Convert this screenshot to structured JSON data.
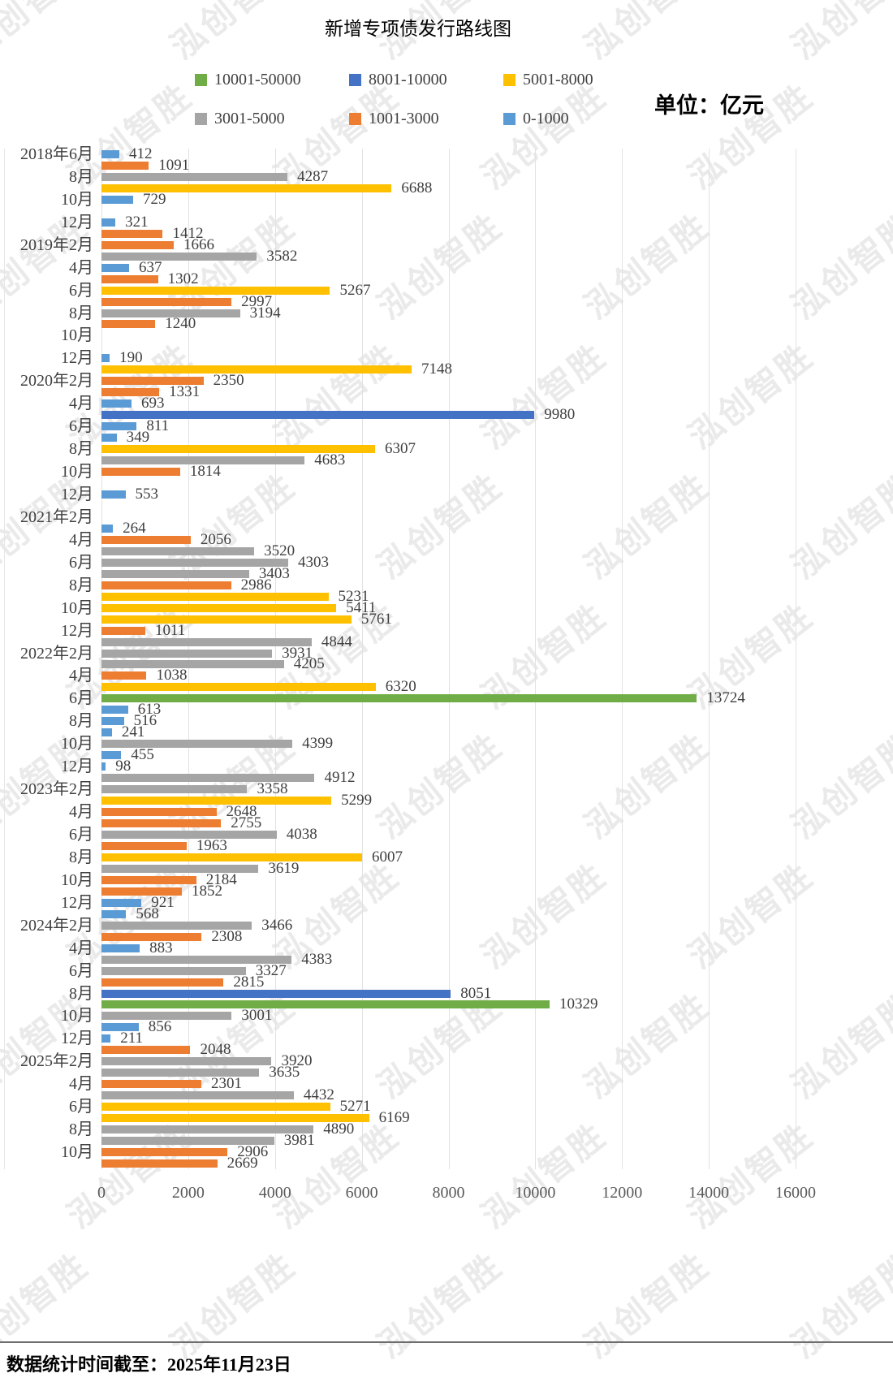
{
  "title": "新增专项债发行路线图",
  "unit_label": "单位：亿元",
  "watermark_text": "泓创智胜",
  "footer": {
    "note": "数据统计时间截至：2025年11月23日"
  },
  "legend": [
    {
      "label": "10001-50000",
      "color": "#70AD47",
      "min": 10001,
      "max": 50000
    },
    {
      "label": "8001-10000",
      "color": "#4472C4",
      "min": 8001,
      "max": 10000
    },
    {
      "label": "5001-8000",
      "color": "#FFC000",
      "min": 5001,
      "max": 8000
    },
    {
      "label": "3001-5000",
      "color": "#A5A5A5",
      "min": 3001,
      "max": 5000
    },
    {
      "label": "1001-3000",
      "color": "#ED7D31",
      "min": 1001,
      "max": 3000
    },
    {
      "label": "0-1000",
      "color": "#5B9BD5",
      "min": 0,
      "max": 1000
    }
  ],
  "chart_data": {
    "type": "bar",
    "orientation": "horizontal",
    "title": "新增专项债发行路线图",
    "unit": "亿元",
    "legend_position": "top",
    "grid": true,
    "xlim": [
      0,
      16000
    ],
    "x_ticks": [
      0,
      2000,
      4000,
      6000,
      8000,
      10000,
      12000,
      14000,
      16000
    ],
    "rows": [
      {
        "month": "2018-06",
        "tick": "2018年6月",
        "value": 412
      },
      {
        "month": "2018-07",
        "tick": "",
        "value": 1091
      },
      {
        "month": "2018-08",
        "tick": "8月",
        "value": 4287
      },
      {
        "month": "2018-09",
        "tick": "",
        "value": 6688
      },
      {
        "month": "2018-10",
        "tick": "10月",
        "value": 729
      },
      {
        "month": "2018-11",
        "tick": "",
        "value": null
      },
      {
        "month": "2018-12",
        "tick": "12月",
        "value": 321
      },
      {
        "month": "2019-01",
        "tick": "",
        "value": 1412
      },
      {
        "month": "2019-02",
        "tick": "2019年2月",
        "value": 1666
      },
      {
        "month": "2019-03",
        "tick": "",
        "value": 3582
      },
      {
        "month": "2019-04",
        "tick": "4月",
        "value": 637
      },
      {
        "month": "2019-05",
        "tick": "",
        "value": 1302
      },
      {
        "month": "2019-06",
        "tick": "6月",
        "value": 5267
      },
      {
        "month": "2019-07",
        "tick": "",
        "value": 2997
      },
      {
        "month": "2019-08",
        "tick": "8月",
        "value": 3194
      },
      {
        "month": "2019-09",
        "tick": "",
        "value": 1240
      },
      {
        "month": "2019-10",
        "tick": "10月",
        "value": null
      },
      {
        "month": "2019-11",
        "tick": "",
        "value": null
      },
      {
        "month": "2019-12",
        "tick": "12月",
        "value": 190
      },
      {
        "month": "2020-01",
        "tick": "",
        "value": 7148
      },
      {
        "month": "2020-02",
        "tick": "2020年2月",
        "value": 2350
      },
      {
        "month": "2020-03",
        "tick": "",
        "value": 1331
      },
      {
        "month": "2020-04",
        "tick": "4月",
        "value": 693
      },
      {
        "month": "2020-05",
        "tick": "",
        "value": 9980
      },
      {
        "month": "2020-06",
        "tick": "6月",
        "value": 811
      },
      {
        "month": "2020-07",
        "tick": "",
        "value": 349
      },
      {
        "month": "2020-08",
        "tick": "8月",
        "value": 6307
      },
      {
        "month": "2020-09",
        "tick": "",
        "value": 4683
      },
      {
        "month": "2020-10",
        "tick": "10月",
        "value": 1814
      },
      {
        "month": "2020-11",
        "tick": "",
        "value": null
      },
      {
        "month": "2020-12",
        "tick": "12月",
        "value": 553
      },
      {
        "month": "2021-01",
        "tick": "",
        "value": null
      },
      {
        "month": "2021-02",
        "tick": "2021年2月",
        "value": null
      },
      {
        "month": "2021-03",
        "tick": "",
        "value": 264
      },
      {
        "month": "2021-04",
        "tick": "4月",
        "value": 2056
      },
      {
        "month": "2021-05",
        "tick": "",
        "value": 3520
      },
      {
        "month": "2021-06",
        "tick": "6月",
        "value": 4303
      },
      {
        "month": "2021-07",
        "tick": "",
        "value": 3403
      },
      {
        "month": "2021-08",
        "tick": "8月",
        "value": 2986
      },
      {
        "month": "2021-09",
        "tick": "",
        "value": 5231
      },
      {
        "month": "2021-10",
        "tick": "10月",
        "value": 5411
      },
      {
        "month": "2021-11",
        "tick": "",
        "value": 5761
      },
      {
        "month": "2021-12",
        "tick": "12月",
        "value": 1011
      },
      {
        "month": "2022-01",
        "tick": "",
        "value": 4844
      },
      {
        "month": "2022-02",
        "tick": "2022年2月",
        "value": 3931
      },
      {
        "month": "2022-03",
        "tick": "",
        "value": 4205
      },
      {
        "month": "2022-04",
        "tick": "4月",
        "value": 1038
      },
      {
        "month": "2022-05",
        "tick": "",
        "value": 6320
      },
      {
        "month": "2022-06",
        "tick": "6月",
        "value": 13724
      },
      {
        "month": "2022-07",
        "tick": "",
        "value": 613
      },
      {
        "month": "2022-08",
        "tick": "8月",
        "value": 516
      },
      {
        "month": "2022-09",
        "tick": "",
        "value": 241
      },
      {
        "month": "2022-10",
        "tick": "10月",
        "value": 4399
      },
      {
        "month": "2022-11",
        "tick": "",
        "value": 455
      },
      {
        "month": "2022-12",
        "tick": "12月",
        "value": 98
      },
      {
        "month": "2023-01",
        "tick": "",
        "value": 4912
      },
      {
        "month": "2023-02",
        "tick": "2023年2月",
        "value": 3358
      },
      {
        "month": "2023-03",
        "tick": "",
        "value": 5299
      },
      {
        "month": "2023-04",
        "tick": "4月",
        "value": 2648
      },
      {
        "month": "2023-05",
        "tick": "",
        "value": 2755
      },
      {
        "month": "2023-06",
        "tick": "6月",
        "value": 4038
      },
      {
        "month": "2023-07",
        "tick": "",
        "value": 1963
      },
      {
        "month": "2023-08",
        "tick": "8月",
        "value": 6007
      },
      {
        "month": "2023-09",
        "tick": "",
        "value": 3619
      },
      {
        "month": "2023-10",
        "tick": "10月",
        "value": 2184
      },
      {
        "month": "2023-11",
        "tick": "",
        "value": 1852
      },
      {
        "month": "2023-12",
        "tick": "12月",
        "value": 921
      },
      {
        "month": "2024-01",
        "tick": "",
        "value": 568
      },
      {
        "month": "2024-02",
        "tick": "2024年2月",
        "value": 3466
      },
      {
        "month": "2024-03",
        "tick": "",
        "value": 2308
      },
      {
        "month": "2024-04",
        "tick": "4月",
        "value": 883
      },
      {
        "month": "2024-05",
        "tick": "",
        "value": 4383
      },
      {
        "month": "2024-06",
        "tick": "6月",
        "value": 3327
      },
      {
        "month": "2024-07",
        "tick": "",
        "value": 2815
      },
      {
        "month": "2024-08",
        "tick": "8月",
        "value": 8051
      },
      {
        "month": "2024-09",
        "tick": "",
        "value": 10329
      },
      {
        "month": "2024-10",
        "tick": "10月",
        "value": 3001
      },
      {
        "month": "2024-11",
        "tick": "",
        "value": 856
      },
      {
        "month": "2024-12",
        "tick": "12月",
        "value": 211
      },
      {
        "month": "2025-01",
        "tick": "",
        "value": 2048
      },
      {
        "month": "2025-02",
        "tick": "2025年2月",
        "value": 3920
      },
      {
        "month": "2025-03",
        "tick": "",
        "value": 3635
      },
      {
        "month": "2025-04",
        "tick": "4月",
        "value": 2301
      },
      {
        "month": "2025-05",
        "tick": "",
        "value": 4432
      },
      {
        "month": "2025-06",
        "tick": "6月",
        "value": 5271
      },
      {
        "month": "2025-07",
        "tick": "",
        "value": 6169
      },
      {
        "month": "2025-08",
        "tick": "8月",
        "value": 4890
      },
      {
        "month": "2025-09",
        "tick": "",
        "value": 3981
      },
      {
        "month": "2025-10",
        "tick": "10月",
        "value": 2906
      },
      {
        "month": "2025-11",
        "tick": "",
        "value": 2669
      }
    ]
  }
}
